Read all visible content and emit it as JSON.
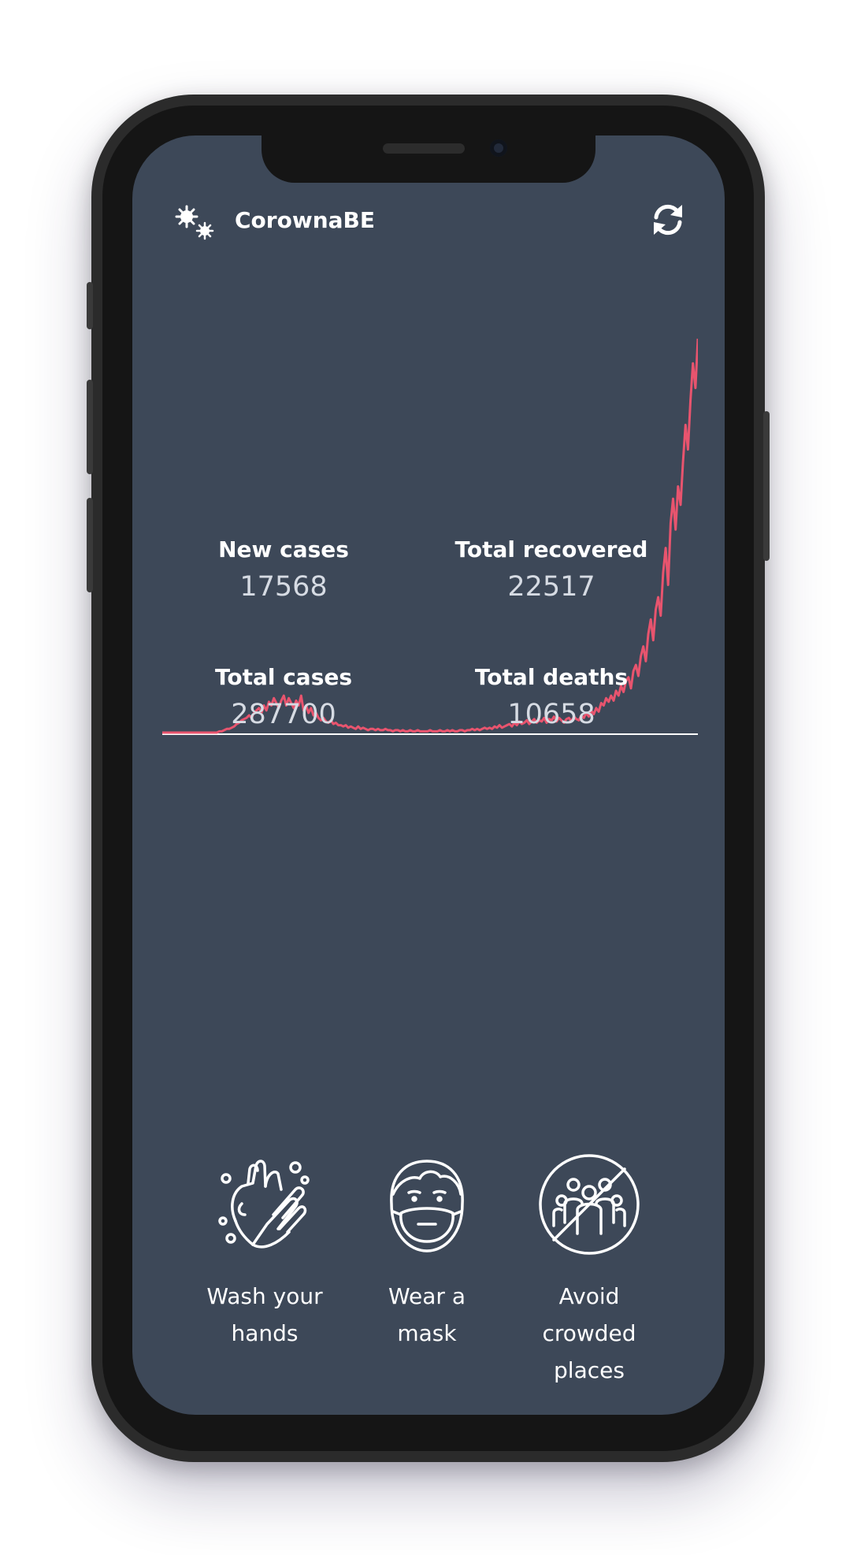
{
  "header": {
    "title": "CorownaBE",
    "logo_icon": "virus-icon",
    "refresh_icon": "refresh-icon"
  },
  "chart_data": {
    "type": "line",
    "color": "#e8546e",
    "baseline_color": "#ffffff",
    "values": [
      0,
      0,
      0,
      0,
      0,
      0,
      0,
      0,
      0,
      0,
      0,
      0,
      0,
      0,
      0,
      0,
      0,
      0,
      0,
      0,
      0,
      0,
      0,
      1,
      1,
      2,
      3,
      3,
      4,
      5,
      7,
      8,
      10,
      11,
      12,
      14,
      12,
      16,
      18,
      20,
      16,
      22,
      18,
      25,
      22,
      28,
      24,
      20,
      26,
      30,
      22,
      28,
      24,
      20,
      26,
      22,
      30,
      18,
      22,
      16,
      20,
      14,
      16,
      12,
      10,
      12,
      9,
      8,
      10,
      7,
      8,
      6,
      6,
      5,
      6,
      4,
      5,
      4,
      3,
      5,
      3,
      4,
      3,
      2,
      3,
      3,
      2,
      3,
      2,
      2,
      3,
      2,
      2,
      1,
      2,
      2,
      1,
      2,
      1,
      1,
      2,
      1,
      1,
      2,
      1,
      1,
      1,
      1,
      2,
      1,
      1,
      1,
      2,
      1,
      1,
      2,
      1,
      2,
      1,
      1,
      2,
      2,
      1,
      2,
      2,
      3,
      2,
      3,
      2,
      3,
      4,
      3,
      4,
      3,
      5,
      4,
      6,
      4,
      5,
      6,
      7,
      5,
      8,
      6,
      9,
      7,
      8,
      10,
      7,
      9,
      11,
      8,
      10,
      9,
      12,
      8,
      11,
      10,
      13,
      9,
      12,
      10,
      8,
      11,
      12,
      9,
      13,
      11,
      10,
      14,
      12,
      16,
      13,
      18,
      15,
      20,
      17,
      24,
      22,
      28,
      25,
      30,
      26,
      34,
      30,
      38,
      33,
      42,
      45,
      36,
      50,
      55,
      46,
      62,
      70,
      58,
      80,
      92,
      75,
      100,
      110,
      95,
      130,
      150,
      120,
      170,
      190,
      165,
      200,
      185,
      220,
      250,
      230,
      270,
      300,
      280,
      320
    ],
    "ylim": [
      0,
      320
    ]
  },
  "stats": [
    {
      "label": "New cases",
      "value": "17568"
    },
    {
      "label": "Total recovered",
      "value": "22517"
    },
    {
      "label": "Total cases",
      "value": "287700"
    },
    {
      "label": "Total deaths",
      "value": "10658"
    }
  ],
  "tips": [
    {
      "icon": "washing-hands-icon",
      "label": "Wash your hands"
    },
    {
      "icon": "face-mask-icon",
      "label": "Wear a mask"
    },
    {
      "icon": "no-crowd-icon",
      "label": "Avoid crowded places"
    }
  ]
}
